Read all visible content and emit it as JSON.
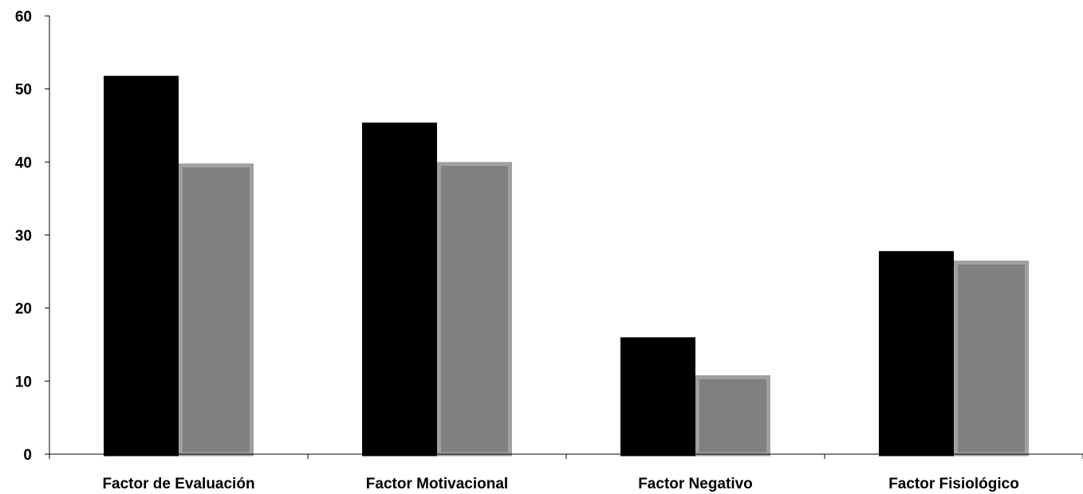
{
  "chart_data": {
    "type": "bar",
    "title": "",
    "xlabel": "",
    "ylabel": "",
    "ylim": [
      0,
      60
    ],
    "yticks": [
      0,
      10,
      20,
      30,
      40,
      50,
      60
    ],
    "grid": false,
    "legend": "none",
    "categories": [
      "Factor de Evaluación",
      "Factor Motivacional",
      "Factor Negativo",
      "Factor Fisiológico"
    ],
    "series": [
      {
        "values": [
          51.8,
          45.4,
          16.0,
          27.8
        ],
        "color": "#000000",
        "stroke": "#000000"
      },
      {
        "values": [
          39.8,
          40.0,
          10.8,
          26.5
        ],
        "color": "#808080",
        "stroke": "#a0a0a0"
      }
    ]
  }
}
